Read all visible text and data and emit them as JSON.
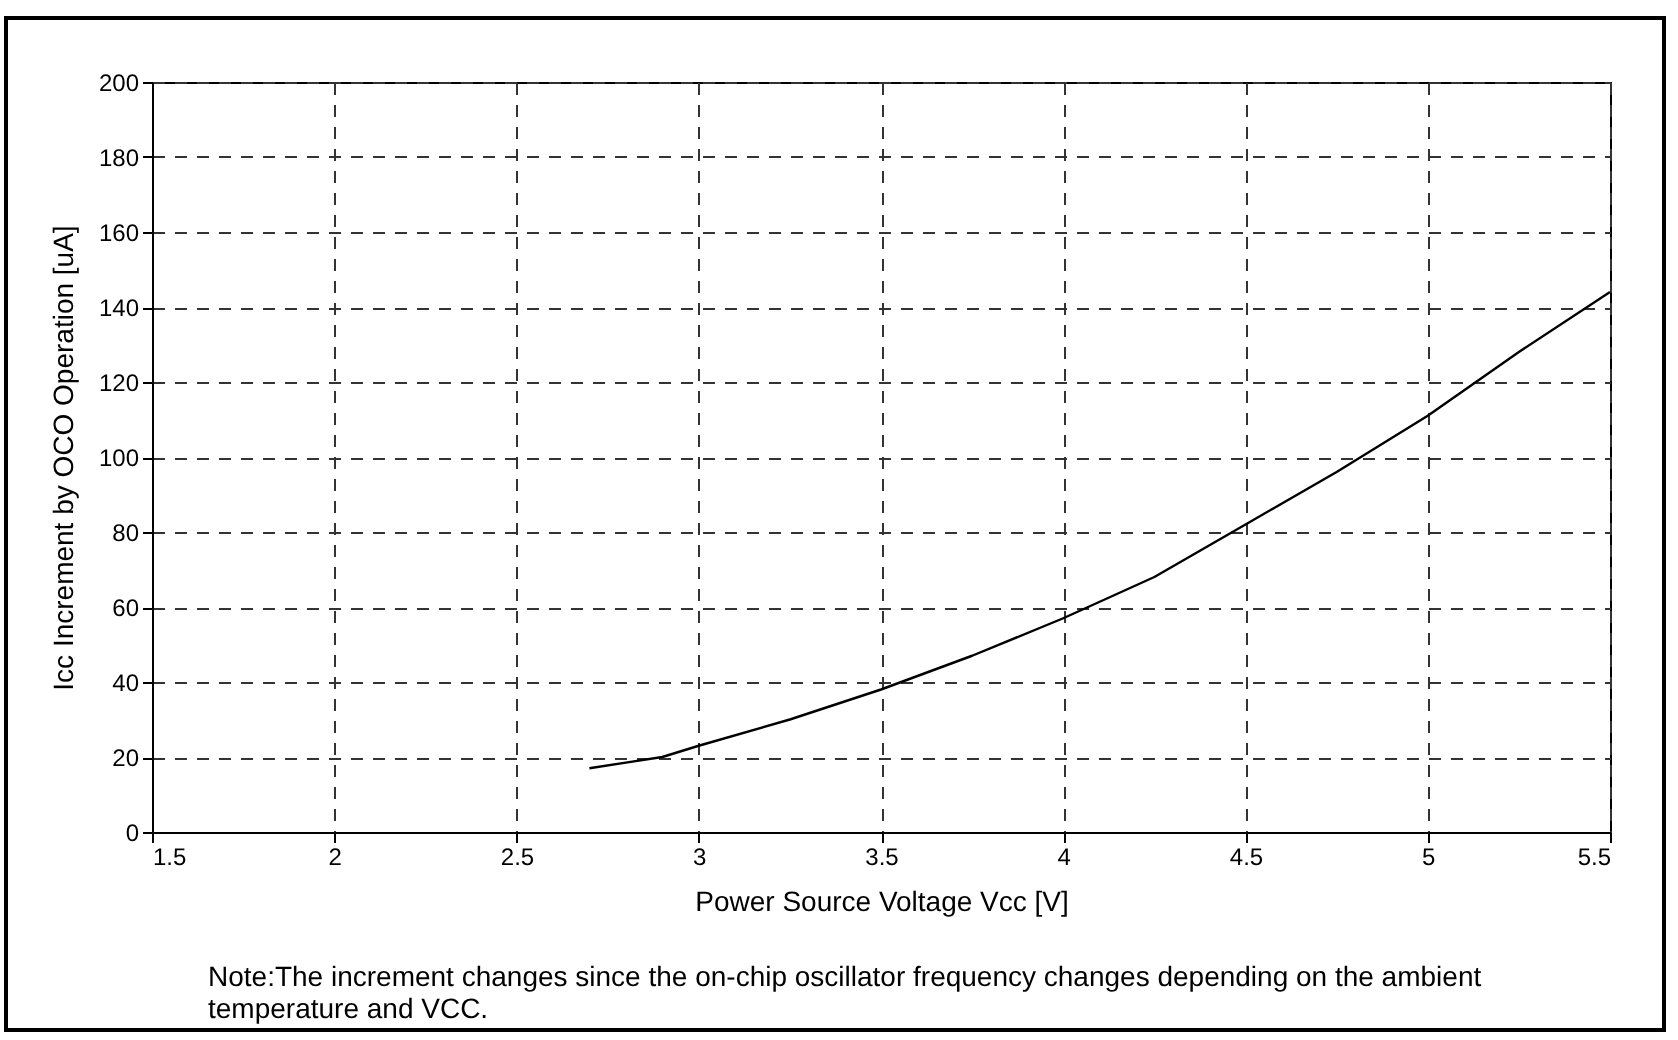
{
  "chart_data": {
    "type": "line",
    "xlabel": "Power Source Voltage Vcc [V]",
    "ylabel": "Icc Increment by OCO Operation [uA]",
    "annotations": [
      "Note:The increment changes since the on-chip oscillator frequency changes depending on the ambient temperature and VCC."
    ],
    "x": [
      2.7,
      2.8,
      2.9,
      3.0,
      3.25,
      3.5,
      3.75,
      4.0,
      4.25,
      4.5,
      4.75,
      5.0,
      5.25,
      5.5
    ],
    "series": [
      {
        "color": "#000000",
        "values": [
          17,
          18.5,
          20,
          23,
          30,
          38,
          47,
          57,
          68,
          82,
          96,
          111,
          128,
          144
        ]
      }
    ],
    "xlim": [
      1.5,
      5.5
    ],
    "xticks": [
      1.5,
      2,
      2.5,
      3,
      3.5,
      4,
      4.5,
      5,
      5.5
    ],
    "ylim": [
      0,
      200
    ],
    "yticks": [
      0,
      20,
      40,
      60,
      80,
      100,
      120,
      140,
      160,
      180,
      200
    ],
    "grid": true,
    "marker": "none",
    "line_style": "solid"
  }
}
